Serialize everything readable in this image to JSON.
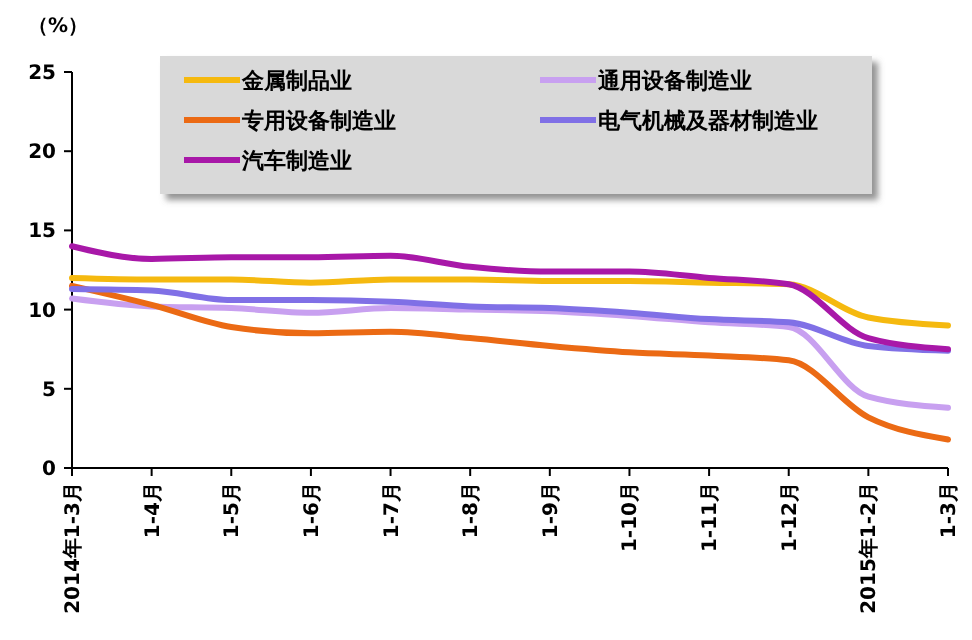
{
  "chart_data": {
    "type": "line",
    "ylabel": "（%）",
    "categories": [
      "2014年1-3月",
      "1-4月",
      "1-5月",
      "1-6月",
      "1-7月",
      "1-8月",
      "1-9月",
      "1-10月",
      "1-11月",
      "1-12月",
      "2015年1-2月",
      "1-3月"
    ],
    "ylim": [
      0,
      25
    ],
    "yticks": [
      0,
      5,
      10,
      15,
      20,
      25
    ],
    "grid": false,
    "legend": "top",
    "marker": "none",
    "line_style": "solid",
    "series": [
      {
        "name": "金属制品业",
        "color": "#f5b90f",
        "values": [
          12.0,
          11.9,
          11.9,
          11.7,
          11.9,
          11.9,
          11.8,
          11.8,
          11.7,
          11.6,
          9.5,
          9.0
        ]
      },
      {
        "name": "通用设备制造业",
        "color": "#c8a0f0",
        "values": [
          10.7,
          10.2,
          10.1,
          9.8,
          10.1,
          10.0,
          9.9,
          9.6,
          9.2,
          8.9,
          4.5,
          3.8
        ]
      },
      {
        "name": "专用设备制造业",
        "color": "#eb6a14",
        "values": [
          11.5,
          10.3,
          8.9,
          8.5,
          8.6,
          8.2,
          7.7,
          7.3,
          7.1,
          6.8,
          3.2,
          1.8
        ]
      },
      {
        "name": "电气机械及器材制造业",
        "color": "#8070e6",
        "values": [
          11.3,
          11.2,
          10.6,
          10.6,
          10.5,
          10.2,
          10.1,
          9.8,
          9.4,
          9.2,
          7.7,
          7.4
        ]
      },
      {
        "name": "汽车制造业",
        "color": "#a818a8",
        "values": [
          14.0,
          13.2,
          13.3,
          13.3,
          13.4,
          12.7,
          12.4,
          12.4,
          12.0,
          11.6,
          8.2,
          7.5
        ]
      }
    ]
  }
}
